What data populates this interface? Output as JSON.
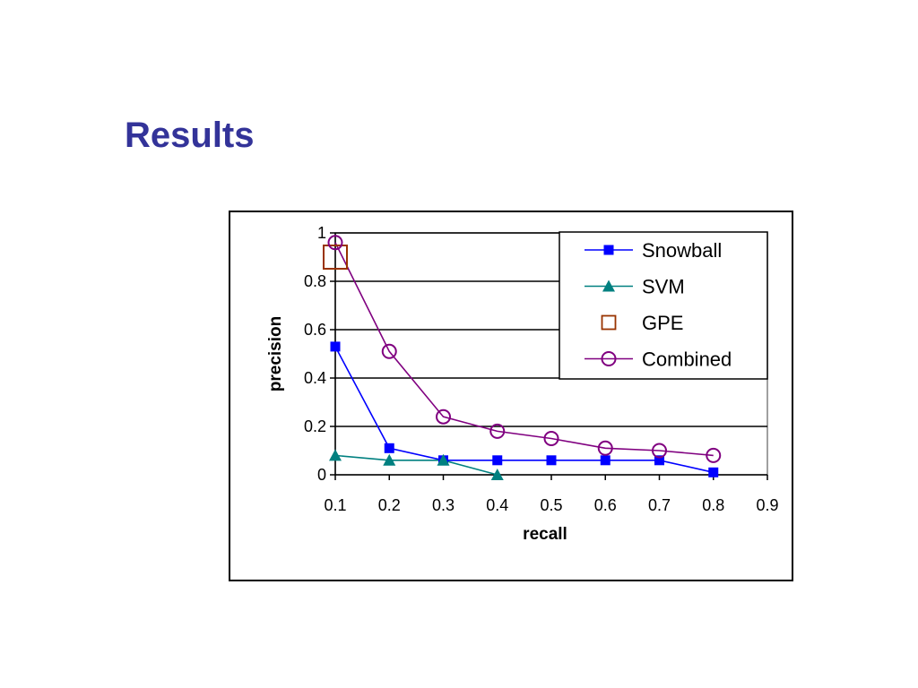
{
  "slide": {
    "title": "Results"
  },
  "chart_data": {
    "type": "line",
    "title": "",
    "xlabel": "recall",
    "ylabel": "precision",
    "xlim": [
      0.1,
      0.9
    ],
    "ylim": [
      0,
      1
    ],
    "x_ticks": [
      "0.1",
      "0.2",
      "0.3",
      "0.4",
      "0.5",
      "0.6",
      "0.7",
      "0.8",
      "0.9"
    ],
    "y_ticks": [
      "0",
      "0.2",
      "0.4",
      "0.6",
      "0.8",
      "1"
    ],
    "grid": "horizontal",
    "legend_position": "top-right",
    "series": [
      {
        "name": "Snowball",
        "color": "#0000ff",
        "marker": "square-filled",
        "line": true,
        "points": [
          [
            0.1,
            0.53
          ],
          [
            0.2,
            0.11
          ],
          [
            0.3,
            0.06
          ],
          [
            0.4,
            0.06
          ],
          [
            0.5,
            0.06
          ],
          [
            0.6,
            0.06
          ],
          [
            0.7,
            0.06
          ],
          [
            0.8,
            0.01
          ]
        ]
      },
      {
        "name": "SVM",
        "color": "#008080",
        "marker": "triangle-filled",
        "line": true,
        "points": [
          [
            0.1,
            0.08
          ],
          [
            0.2,
            0.06
          ],
          [
            0.3,
            0.06
          ],
          [
            0.4,
            0.0
          ]
        ]
      },
      {
        "name": "GPE",
        "color": "#993300",
        "marker": "square-open",
        "line": false,
        "points": [
          [
            0.1,
            0.9
          ]
        ]
      },
      {
        "name": "Combined",
        "color": "#800080",
        "marker": "circle-open",
        "line": true,
        "points": [
          [
            0.1,
            0.96
          ],
          [
            0.2,
            0.51
          ],
          [
            0.3,
            0.24
          ],
          [
            0.4,
            0.18
          ],
          [
            0.5,
            0.15
          ],
          [
            0.6,
            0.11
          ],
          [
            0.7,
            0.1
          ],
          [
            0.8,
            0.08
          ]
        ]
      }
    ]
  }
}
